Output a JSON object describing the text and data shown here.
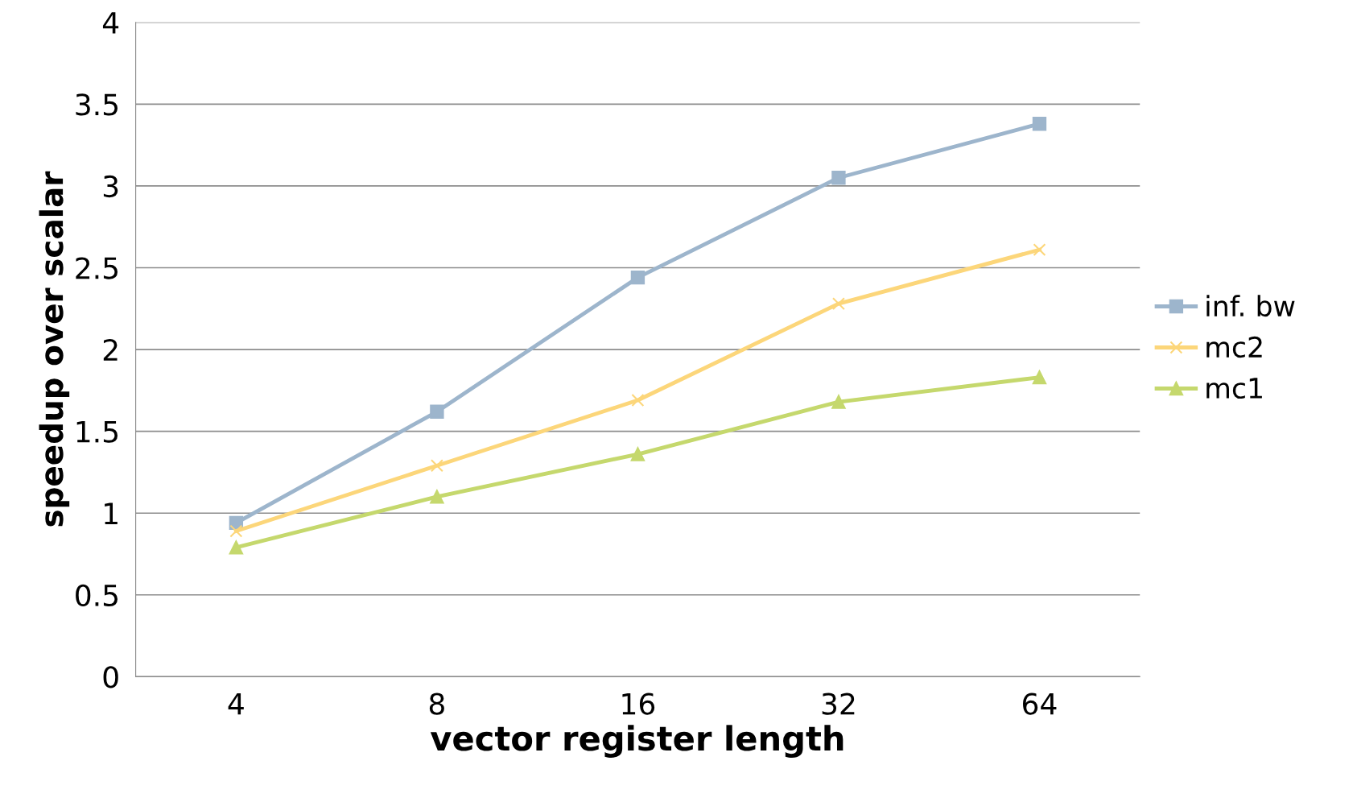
{
  "chart_data": {
    "type": "line",
    "xlabel": "vector register length",
    "ylabel": "speedup over scalar",
    "categories": [
      "4",
      "8",
      "16",
      "32",
      "64"
    ],
    "series": [
      {
        "name": "inf. bw",
        "color": "#9db5cc",
        "marker": "square",
        "values": [
          0.94,
          1.62,
          2.44,
          3.05,
          3.38
        ]
      },
      {
        "name": "mc2",
        "color": "#fcd67a",
        "marker": "cross",
        "values": [
          0.89,
          1.29,
          1.69,
          2.28,
          2.61
        ]
      },
      {
        "name": "mc1",
        "color": "#c5d86d",
        "marker": "triangle",
        "values": [
          0.79,
          1.1,
          1.36,
          1.68,
          1.83
        ]
      }
    ],
    "ylim": [
      0,
      4
    ],
    "yticks": [
      0,
      0.5,
      1,
      1.5,
      2,
      2.5,
      3,
      3.5,
      4
    ],
    "grid": "y",
    "legend": "right",
    "line_style": "solid"
  }
}
